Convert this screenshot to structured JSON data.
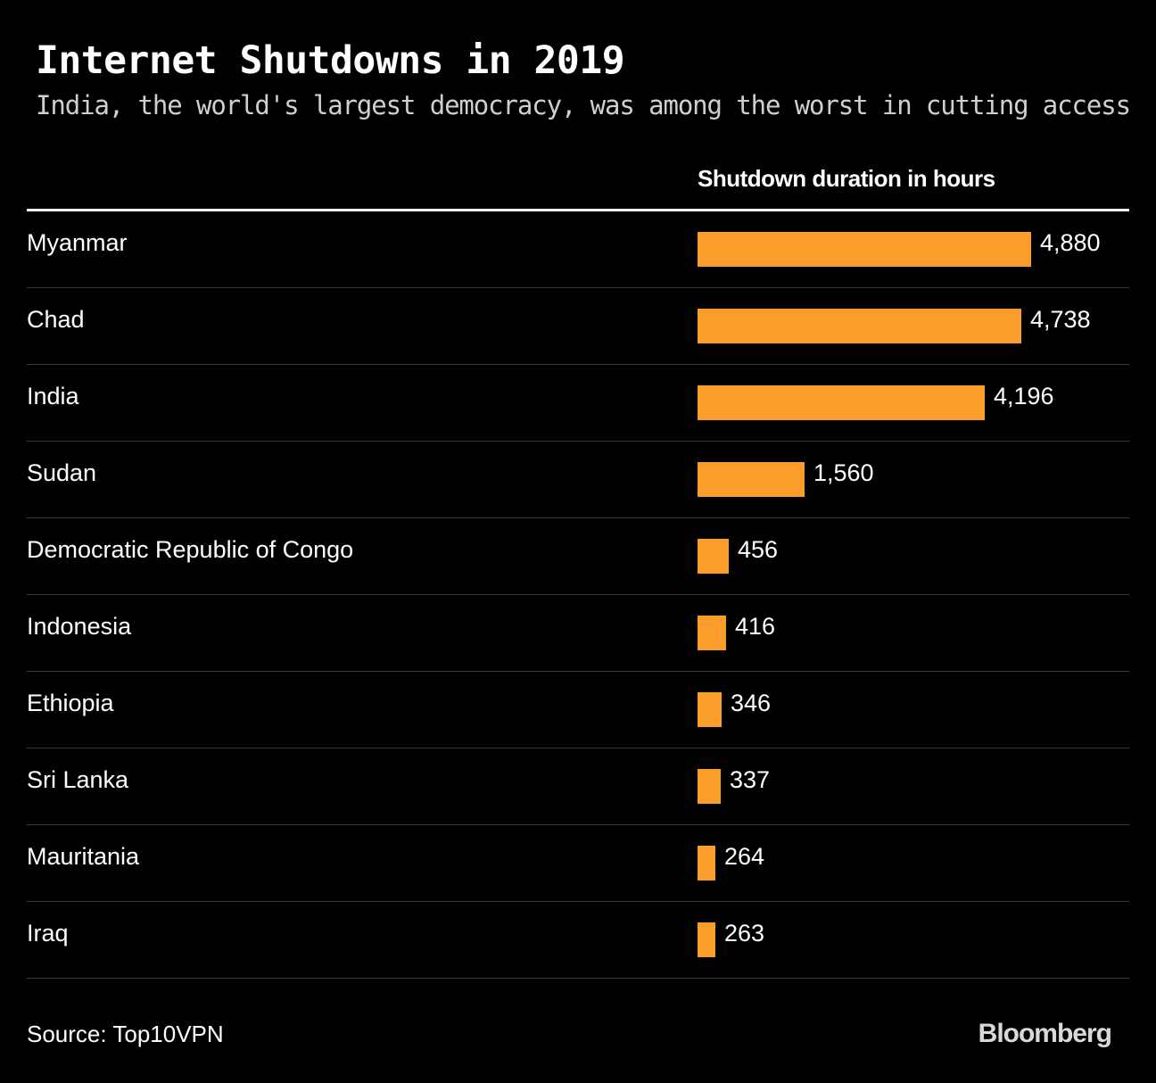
{
  "chart_data": {
    "type": "bar",
    "orientation": "horizontal",
    "title": "Internet Shutdowns in 2019",
    "subtitle": "India, the world's largest democracy, was among the worst in cutting access",
    "value_header": "Shutdown duration in hours",
    "categories": [
      "Myanmar",
      "Chad",
      "India",
      "Sudan",
      "Democratic Republic of Congo",
      "Indonesia",
      "Ethiopia",
      "Sri Lanka",
      "Mauritania",
      "Iraq"
    ],
    "values": [
      4880,
      4738,
      4196,
      1560,
      456,
      416,
      346,
      337,
      264,
      263
    ],
    "value_labels": [
      "4,880",
      "4,738",
      "4,196",
      "1,560",
      "456",
      "416",
      "346",
      "337",
      "264",
      "263"
    ],
    "xlim": [
      0,
      4880
    ],
    "bar_color": "#fb9d2b",
    "background_color": "#000000",
    "grid": false,
    "legend": "none"
  },
  "footer": {
    "source": "Source: Top10VPN",
    "brand": "Bloomberg"
  }
}
